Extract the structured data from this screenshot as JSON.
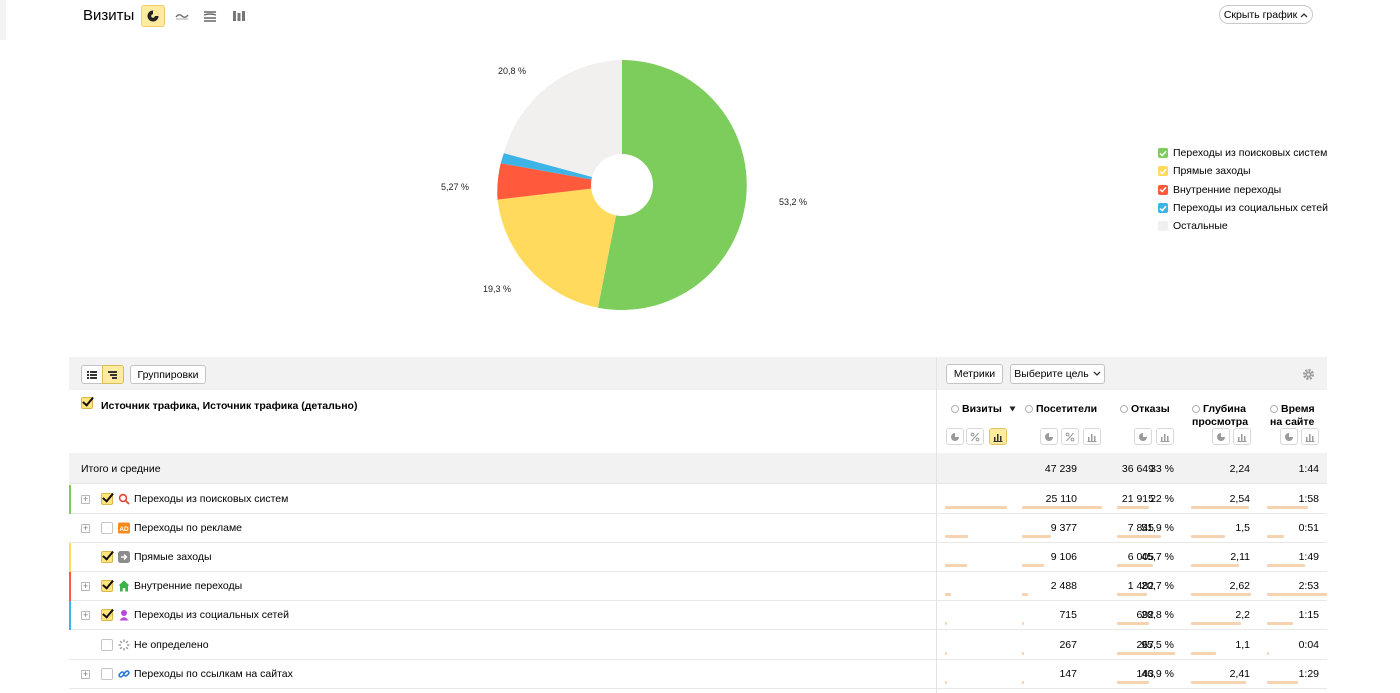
{
  "header": {
    "title": "Визиты",
    "hide_chart_label": "Скрыть график"
  },
  "pie": {
    "labels": {
      "search": "53,2 %",
      "direct": "19,3 %",
      "internal": "5,27 %",
      "other": "20,8 %"
    },
    "colors": {
      "search": "#7ccd5b",
      "direct": "#ffda5c",
      "internal": "#fe5a3b",
      "social": "#3eb3e6",
      "other": "#f2f0ee"
    }
  },
  "legend": [
    {
      "label": "Переходы из поисковых систем",
      "color": "#7ccd5b",
      "checked": true
    },
    {
      "label": "Прямые заходы",
      "color": "#ffda5c",
      "checked": true
    },
    {
      "label": "Внутренние переходы",
      "color": "#fe5a3b",
      "checked": true
    },
    {
      "label": "Переходы из социальных сетей",
      "color": "#3eb3e6",
      "checked": true
    },
    {
      "label": "Остальные",
      "color": "#f2f0ee",
      "checked": false
    }
  ],
  "toolbar": {
    "groupings_label": "Группировки",
    "metrics_label": "Метрики",
    "goal_label": "Выберите цель"
  },
  "table": {
    "dimension_header": "Источник трафика, Источник трафика (детально)",
    "columns": {
      "visits": "Визиты",
      "visitors": "Посетители",
      "bounces": "Отказы",
      "depth_1": "Глубина",
      "depth_2": "просмотра",
      "time_1": "Время",
      "time_2": "на сайте"
    },
    "total": {
      "label": "Итого и средние",
      "visits": "47 239",
      "visitors": "36 649",
      "bounces": "33 %",
      "depth": "2,24",
      "time": "1:44"
    },
    "rows": [
      {
        "label": "Переходы из поисковых систем",
        "visits": "25 110",
        "visitors": "21 915",
        "bounces": "22 %",
        "depth": "2,54",
        "time": "1:58"
      },
      {
        "label": "Переходы по рекламе",
        "visits": "9 377",
        "visitors": "7 845",
        "bounces": "51,9 %",
        "depth": "1,5",
        "time": "0:51"
      },
      {
        "label": "Прямые заходы",
        "visits": "9 106",
        "visitors": "6 005",
        "bounces": "45,7 %",
        "depth": "2,11",
        "time": "1:49"
      },
      {
        "label": "Внутренние переходы",
        "visits": "2 488",
        "visitors": "1 482",
        "bounces": "20,7 %",
        "depth": "2,62",
        "time": "2:53"
      },
      {
        "label": "Переходы из социальных сетей",
        "visits": "715",
        "visitors": "692",
        "bounces": "28,8 %",
        "depth": "2,2",
        "time": "1:15"
      },
      {
        "label": "Не определено",
        "visits": "267",
        "visitors": "267",
        "bounces": "95,5 %",
        "depth": "1,1",
        "time": "0:04"
      },
      {
        "label": "Переходы по ссылкам на сайтах",
        "visits": "147",
        "visitors": "143",
        "bounces": "46,9 %",
        "depth": "2,41",
        "time": "1:29"
      }
    ]
  }
}
